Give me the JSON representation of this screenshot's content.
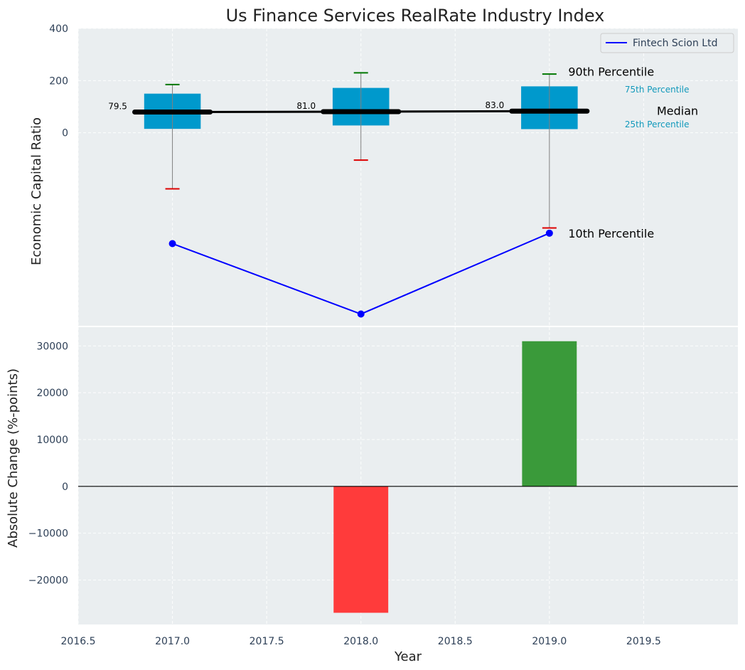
{
  "chart_data": [
    {
      "type": "box",
      "title": "Us Finance Services RealRate Industry Index",
      "ylabel": "Economic Capital Ratio",
      "ylim": [
        -740,
        400
      ],
      "yticks": [
        0,
        200,
        400
      ],
      "xlim": [
        2016.5,
        2020.0
      ],
      "grid": true,
      "legend_position": "top-right",
      "boxes": [
        {
          "x": 2017,
          "p10": -215,
          "q1": 15,
          "median": 79.5,
          "q3": 150,
          "p90": 185,
          "median_label": "79.5"
        },
        {
          "x": 2018,
          "p10": -105,
          "q1": 28,
          "median": 81.0,
          "q3": 172,
          "p90": 230,
          "median_label": "81.0"
        },
        {
          "x": 2019,
          "p10": -365,
          "q1": 14,
          "median": 83.0,
          "q3": 178,
          "p90": 225,
          "median_label": "83.0"
        }
      ],
      "series": [
        {
          "name": "Fintech Scion Ltd",
          "color": "#0000ff",
          "x": [
            2017,
            2018,
            2019
          ],
          "y": [
            -425,
            -695,
            -385
          ]
        }
      ],
      "annotations": {
        "p90": "90th Percentile",
        "p75": "75th Percentile",
        "median": "Median",
        "p25": "25th Percentile",
        "p10": "10th Percentile"
      }
    },
    {
      "type": "bar",
      "xlabel": "Year",
      "ylabel": "Absolute Change (%-points)",
      "ylim": [
        -29500,
        34000
      ],
      "yticks": [
        -20000,
        -10000,
        0,
        10000,
        20000,
        30000
      ],
      "xlim": [
        2016.5,
        2020.0
      ],
      "xticks": [
        2016.5,
        2017.0,
        2017.5,
        2018.0,
        2018.5,
        2019.0,
        2019.5
      ],
      "grid": true,
      "bars": [
        {
          "x": 2018,
          "value": -27000,
          "color": "#ff3b3b"
        },
        {
          "x": 2019,
          "value": 31000,
          "color": "#3a9a3a"
        }
      ]
    }
  ],
  "colors": {
    "axes_bg": "#eaeef0",
    "box_fill": "#0099cc",
    "median_line": "#000000",
    "whisker": "#808080",
    "p90_cap": "#007700",
    "p10_cap": "#dd0000",
    "annotation_cyan": "#1199bb"
  }
}
